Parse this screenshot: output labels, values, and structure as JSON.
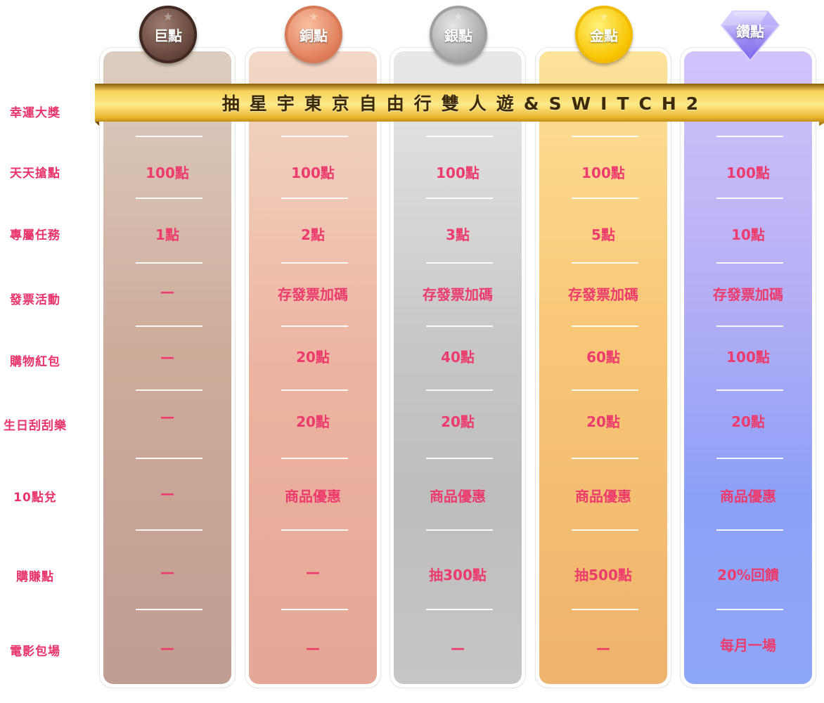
{
  "tiers": [
    {
      "name": "巨點"
    },
    {
      "name": "銅點"
    },
    {
      "name": "銀點"
    },
    {
      "name": "金點"
    },
    {
      "name": "鑽點"
    }
  ],
  "banner": {
    "text": "抽星宇東京自由行雙人遊&SWITCH2"
  },
  "rows": [
    {
      "label": "幸運大獎"
    },
    {
      "label": "天天搶點",
      "values": [
        "100點",
        "100點",
        "100點",
        "100點",
        "100點"
      ]
    },
    {
      "label": "專屬任務",
      "values": [
        "1點",
        "2點",
        "3點",
        "5點",
        "10點"
      ]
    },
    {
      "label": "發票活動",
      "values": [
        "—",
        "存發票加碼",
        "存發票加碼",
        "存發票加碼",
        "存發票加碼"
      ]
    },
    {
      "label": "購物紅包",
      "values": [
        "—",
        "20點",
        "40點",
        "60點",
        "100點"
      ]
    },
    {
      "label": "生日刮刮樂",
      "values": [
        "—",
        "20點",
        "20點",
        "20點",
        "20點"
      ]
    },
    {
      "label": "10點兌",
      "values": [
        "—",
        "商品優惠",
        "商品優惠",
        "商品優惠",
        "商品優惠"
      ]
    },
    {
      "label": "購賺點",
      "values": [
        "—",
        "—",
        "抽300點",
        "抽500點",
        "20%回饋"
      ]
    },
    {
      "label": "電影包場",
      "values": [
        "—",
        "—",
        "—",
        "—",
        "每月一場"
      ]
    }
  ],
  "colors": {
    "accent_pink": "#ec3b6d",
    "banner_gold": "#f3c33a",
    "bronze": "#5e3f35",
    "copper": "#e07f5c",
    "silver": "#a8a8a8",
    "gold": "#f7c400",
    "diamond": "#9c8cf5"
  }
}
